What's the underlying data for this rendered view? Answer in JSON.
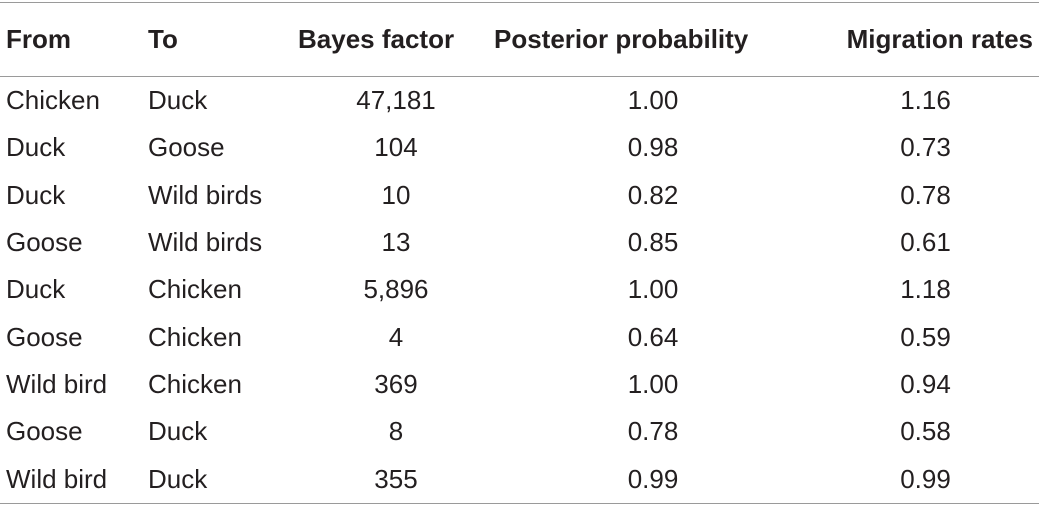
{
  "table": {
    "header": [
      "From",
      "To",
      "Bayes factor",
      "Posterior probability",
      "Migration rates"
    ],
    "rows": [
      [
        "Chicken",
        "Duck",
        "47,181",
        "1.00",
        "1.16"
      ],
      [
        "Duck",
        "Goose",
        "104",
        "0.98",
        "0.73"
      ],
      [
        "Duck",
        "Wild birds",
        "10",
        "0.82",
        "0.78"
      ],
      [
        "Goose",
        "Wild birds",
        "13",
        "0.85",
        "0.61"
      ],
      [
        "Duck",
        "Chicken",
        "5,896",
        "1.00",
        "1.18"
      ],
      [
        "Goose",
        "Chicken",
        "4",
        "0.64",
        "0.59"
      ],
      [
        "Wild bird",
        "Chicken",
        "369",
        "1.00",
        "0.94"
      ],
      [
        "Goose",
        "Duck",
        "8",
        "0.78",
        "0.58"
      ],
      [
        "Wild bird",
        "Duck",
        "355",
        "0.99",
        "0.99"
      ]
    ]
  }
}
